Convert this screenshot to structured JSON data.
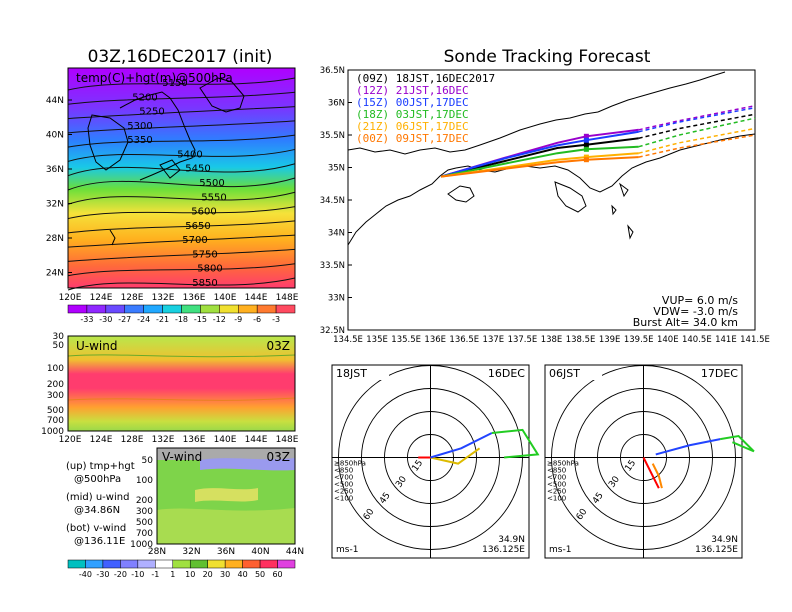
{
  "left_title": "03Z,16DEC2017 (init)",
  "right_title": "Sonde Tracking Forecast",
  "map_panel": {
    "label": "temp(C)+hgt(m)@500hPa",
    "lat_ticks": [
      "44N",
      "40N",
      "36N",
      "32N",
      "28N",
      "24N"
    ],
    "lon_ticks": [
      "120E",
      "124E",
      "128E",
      "132E",
      "136E",
      "140E",
      "144E",
      "148E"
    ],
    "contour_labels": [
      "5150",
      "5200",
      "5250",
      "5300",
      "5350",
      "5400",
      "5450",
      "5500",
      "5550",
      "5600",
      "5650",
      "5700",
      "5750",
      "5800",
      "5850"
    ]
  },
  "temp_colorbar": {
    "labels": [
      "-33",
      "-30",
      "-27",
      "-24",
      "-21",
      "-18",
      "-15",
      "-12",
      "-9",
      "-6",
      "-3"
    ]
  },
  "uwind_panel": {
    "label": "U-wind",
    "time": "03Z",
    "p_ticks": [
      "30",
      "50",
      "100",
      "200",
      "300",
      "500",
      "700",
      "1000"
    ],
    "lon_ticks": [
      "120E",
      "124E",
      "128E",
      "132E",
      "136E",
      "140E",
      "144E",
      "148E"
    ]
  },
  "vwind_panel": {
    "label": "V-wind",
    "time": "03Z",
    "p_ticks": [
      "50",
      "100",
      "200",
      "300",
      "500",
      "700",
      "1000"
    ],
    "lat_ticks": [
      "28N",
      "32N",
      "36N",
      "40N",
      "44N"
    ]
  },
  "wind_colorbar": {
    "labels": [
      "-40",
      "-30",
      "-20",
      "-10",
      "-1",
      "1",
      "10",
      "20",
      "30",
      "40",
      "50",
      "60"
    ]
  },
  "notes": [
    {
      "a": "(up) tmp+hgt",
      "b": "@500hPa"
    },
    {
      "a": "(mid) u-wind",
      "b": "@34.86N"
    },
    {
      "a": "(bot) v-wind",
      "b": "@136.11E"
    }
  ],
  "track_legend": [
    {
      "text": "(09Z)  18JST,16DEC2017",
      "color": "#000000"
    },
    {
      "text": "(12Z)  21JST,16DEC",
      "color": "#9900cc"
    },
    {
      "text": "(15Z)  00JST,17DEC",
      "color": "#1a3cff"
    },
    {
      "text": "(18Z)  03JST,17DEC",
      "color": "#22bb22"
    },
    {
      "text": "(21Z)  06JST,17DEC",
      "color": "#ffb000"
    },
    {
      "text": "(00Z)  09JST,17DEC",
      "color": "#ff7700"
    }
  ],
  "track_params": {
    "vup": "VUP=  6.0  m/s",
    "vdw": "VDW= -3.0  m/s",
    "burst": "Burst Alt=  34.0  km"
  },
  "hodographs": [
    {
      "left": "18JST",
      "right": "16DEC",
      "unit": "ms-1",
      "lat": "34.9N",
      "lon": "136.125E"
    },
    {
      "left": "06JST",
      "right": "17DEC",
      "unit": "ms-1",
      "lat": "34.9N",
      "lon": "136.125E"
    }
  ],
  "hodo_levels": [
    "≥850hPa",
    "<850",
    "<700",
    "<500",
    "<250",
    "<100"
  ],
  "hodo_level_colors": [
    "#ff0000",
    "#ff8800",
    "#ddbb00",
    "#22cc22",
    "#00aadd",
    "#2244ff"
  ],
  "hodo_ring_labels": [
    "15",
    "30",
    "45",
    "60"
  ],
  "chart_data": [
    {
      "type": "line",
      "title": "Sonde Tracking Forecast",
      "xlabel": "",
      "ylabel": "",
      "xlim": [
        134.5,
        141.5
      ],
      "ylim": [
        32.5,
        36.5
      ],
      "x_ticks": [
        "134.5E",
        "135E",
        "135.5E",
        "136E",
        "136.5E",
        "137E",
        "137.5E",
        "138E",
        "138.5E",
        "139E",
        "139.5E",
        "140E",
        "140.5E",
        "141E",
        "141.5E"
      ],
      "y_ticks": [
        "32.5N",
        "33N",
        "33.5N",
        "34N",
        "34.5N",
        "35N",
        "35.5N",
        "36N",
        "36.5N"
      ],
      "legend": "top-left",
      "series": [
        {
          "name": "(09Z)  18JST,16DEC2017",
          "color": "#000000",
          "x": [
            136.1,
            137.2,
            138.1,
            138.6,
            139.5,
            140.2,
            141.5
          ],
          "y": [
            34.86,
            35.1,
            35.3,
            35.35,
            35.45,
            35.6,
            35.82
          ]
        },
        {
          "name": "(12Z)  21JST,16DEC",
          "color": "#9900cc",
          "x": [
            136.1,
            137.2,
            138.1,
            138.6,
            139.5,
            140.2,
            141.5
          ],
          "y": [
            34.86,
            35.15,
            35.38,
            35.48,
            35.58,
            35.72,
            35.95
          ]
        },
        {
          "name": "(15Z)  00JST,17DEC",
          "color": "#1a3cff",
          "x": [
            136.1,
            137.2,
            138.1,
            138.6,
            139.5,
            140.2,
            141.5
          ],
          "y": [
            34.86,
            35.14,
            35.34,
            35.42,
            35.55,
            35.7,
            35.92
          ]
        },
        {
          "name": "(18Z)  03JST,17DEC",
          "color": "#22bb22",
          "x": [
            136.1,
            137.2,
            138.1,
            138.6,
            139.5,
            140.2,
            141.5
          ],
          "y": [
            34.86,
            35.06,
            35.22,
            35.28,
            35.32,
            35.5,
            35.76
          ]
        },
        {
          "name": "(21Z)  06JST,17DEC",
          "color": "#ffb000",
          "x": [
            136.1,
            137.2,
            138.1,
            138.6,
            139.5,
            140.2,
            141.5
          ],
          "y": [
            34.86,
            35.0,
            35.12,
            35.16,
            35.22,
            35.38,
            35.6
          ]
        },
        {
          "name": "(00Z)  09JST,17DEC",
          "color": "#ff7700",
          "x": [
            136.1,
            137.2,
            138.1,
            138.6,
            139.5,
            140.2,
            141.5
          ],
          "y": [
            34.86,
            34.98,
            35.08,
            35.12,
            35.16,
            35.3,
            35.5
          ]
        }
      ]
    },
    {
      "type": "line",
      "title": "18JST 16DEC",
      "series": [
        {
          "name": "≥850hPa",
          "color": "#ff0000",
          "x": [
            0,
            -8
          ],
          "y": [
            0,
            0
          ]
        },
        {
          "name": "<700",
          "color": "#ddbb00",
          "x": [
            0,
            18,
            32
          ],
          "y": [
            0,
            -4,
            6
          ]
        },
        {
          "name": "<250",
          "color": "#2244ff",
          "x": [
            0,
            20,
            40
          ],
          "y": [
            0,
            6,
            16
          ]
        },
        {
          "name": "<100",
          "color": "#22cc22",
          "x": [
            40,
            60,
            70,
            48
          ],
          "y": [
            16,
            18,
            2,
            0
          ]
        }
      ]
    },
    {
      "type": "line",
      "title": "06JST 17DEC",
      "series": [
        {
          "name": "≥850hPa",
          "color": "#ff0000",
          "x": [
            0,
            6,
            10
          ],
          "y": [
            0,
            -12,
            -20
          ]
        },
        {
          "name": "<700",
          "color": "#ff8800",
          "x": [
            6,
            10,
            12
          ],
          "y": [
            -4,
            -12,
            -20
          ]
        },
        {
          "name": "<250",
          "color": "#2244ff",
          "x": [
            8,
            30,
            50
          ],
          "y": [
            2,
            8,
            12
          ]
        },
        {
          "name": "<100",
          "color": "#22cc22",
          "x": [
            50,
            62,
            72,
            58
          ],
          "y": [
            12,
            14,
            4,
            10
          ]
        }
      ]
    }
  ]
}
